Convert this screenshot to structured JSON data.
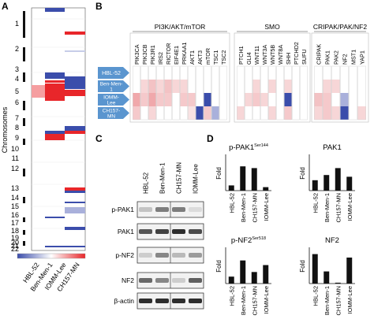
{
  "panel_letters": {
    "a": "A",
    "b": "B",
    "c": "C",
    "d": "D"
  },
  "panelA": {
    "ylabel": "Chromosomes",
    "chromosome_labels": [
      "1",
      "2",
      "3",
      "4",
      "5",
      "6",
      "7",
      "8",
      "9",
      "10",
      "11",
      "12",
      "13",
      "14",
      "15",
      "16",
      "17",
      "18",
      "19",
      "20",
      "21",
      "22"
    ],
    "samples": [
      "HBL-52",
      "Ben-Men-1",
      "IOMM-Lee",
      "CH157-MN"
    ]
  },
  "panelB": {
    "groups": [
      {
        "title": "PI3K/AKT/mTOR",
        "genes": [
          "PIK3CA",
          "PIK3CB",
          "PIK3R1",
          "IRS2",
          "RICTOR",
          "EIF4E1",
          "PRKAA1",
          "AKT1",
          "AKT3",
          "mTOR",
          "TSC1",
          "TSC2"
        ]
      },
      {
        "title": "SMO",
        "genes": [
          "PTCH1",
          "GLI4",
          "WNT11",
          "WNT3A",
          "WNT5B",
          "WNT8A",
          "SHH",
          "PTCHD2",
          "SUFU"
        ]
      },
      {
        "title": "CRIPAK/PAK/NF2",
        "genes": [
          "CRIPAK",
          "PAK1",
          "PAK2",
          "NF2",
          "MST1",
          "YAP1"
        ]
      }
    ],
    "cell_lines": [
      "HBL-52",
      "Ben-Men-1",
      "IOMM-Lee",
      "CH157-MN"
    ]
  },
  "panelC": {
    "lanes": [
      "HBL-52",
      "Ben-Men-1",
      "CH157-MN",
      "IOMM-Lee"
    ],
    "rows": [
      "p-PAK1",
      "PAK1",
      "p-NF2",
      "NF2",
      "β-actin"
    ]
  },
  "panelD": {
    "ylabel": "Fold",
    "charts": [
      {
        "title": "p-PAK1",
        "sup": "Ser144",
        "categories": [
          "HBL-52",
          "Ben-Men-1",
          "CH157-MN",
          "IOMM-Lee"
        ],
        "values": [
          0.3,
          1.4,
          1.3,
          0.2
        ],
        "ylim": [
          0,
          2
        ]
      },
      {
        "title": "PAK1",
        "sup": "",
        "categories": [
          "HBL-52",
          "Ben-Men-1",
          "CH157-MN",
          "IOMM-Lee"
        ],
        "values": [
          0.6,
          0.9,
          1.3,
          0.8
        ],
        "ylim": [
          0,
          2
        ]
      },
      {
        "title": "p-NF2",
        "sup": "Ser518",
        "categories": [
          "HBL-52",
          "Ben-Men-1",
          "CH157-MN",
          "IOMM-Lee"
        ],
        "values": [
          0.03,
          0.1,
          0.05,
          0.08
        ],
        "ylim": [
          0,
          0.15
        ]
      },
      {
        "title": "NF2",
        "sup": "",
        "categories": [
          "HBL-52",
          "Ben-Men-1",
          "CH157-MN",
          "IOMM-Lee"
        ],
        "values": [
          1.7,
          0.7,
          0.05,
          1.5
        ],
        "ylim": [
          0,
          2
        ]
      }
    ]
  },
  "colors": {
    "gain": "#e8262a",
    "loss": "#3b4dab",
    "light_gain": "#f4b8ba",
    "light_loss": "#a9b0db",
    "arrow": "#5a95cf"
  }
}
